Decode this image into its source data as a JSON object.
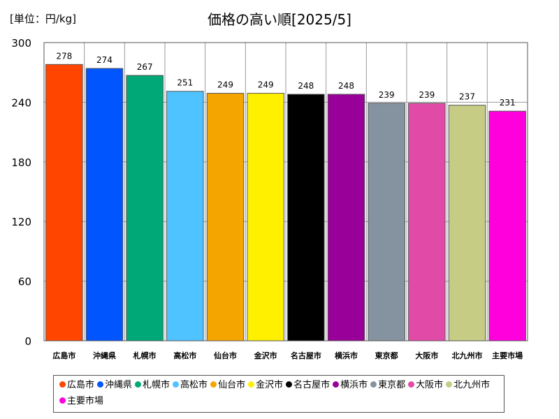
{
  "unit_label": "[単位：円/kg]",
  "chart_data": {
    "type": "bar",
    "title": "価格の高い順[2025/5]",
    "categories": [
      "広島市",
      "沖縄県",
      "札幌市",
      "高松市",
      "仙台市",
      "金沢市",
      "名古屋市",
      "横浜市",
      "東京都",
      "大阪市",
      "北九州市",
      "主要市場"
    ],
    "values": [
      278,
      274,
      267,
      251,
      249,
      249,
      248,
      248,
      239,
      239,
      237,
      231
    ],
    "colors": [
      "#ff4500",
      "#0055ff",
      "#00a878",
      "#4fc3ff",
      "#f5a500",
      "#fff000",
      "#000000",
      "#990099",
      "#8593a0",
      "#e24aa8",
      "#c7cc85",
      "#ff00dd"
    ],
    "ylim": [
      0,
      300
    ],
    "yticks": [
      0,
      60,
      120,
      180,
      240,
      300
    ],
    "grid": true,
    "legend_position": "bottom"
  }
}
